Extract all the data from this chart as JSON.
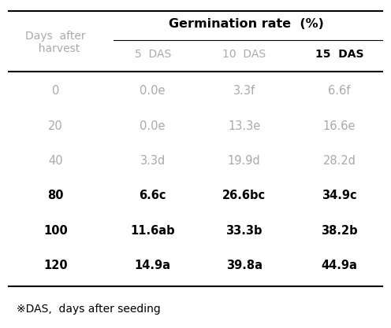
{
  "col_headers": [
    "Days after\nharvest",
    "5 DAS",
    "10 DAS",
    "15 DAS"
  ],
  "group_header": "Germination rate  (%)",
  "rows": [
    [
      "0",
      "0.0e",
      "3.3f",
      "6.6f"
    ],
    [
      "20",
      "0.0e",
      "13.3e",
      "16.6e"
    ],
    [
      "40",
      "3.3d",
      "19.9d",
      "28.2d"
    ],
    [
      "80",
      "6.6c",
      "26.6bc",
      "34.9c"
    ],
    [
      "100",
      "11.6ab",
      "33.3b",
      "38.2b"
    ],
    [
      "120",
      "14.9a",
      "39.8a",
      "44.9a"
    ]
  ],
  "footnote": "※DAS,  days after seeding",
  "light_rows": [
    0,
    1,
    2
  ],
  "bold_rows": [
    3,
    4,
    5
  ],
  "text_color_light": "#aaaaaa",
  "text_color_dark": "#000000",
  "background_color": "#ffffff",
  "header_line_color": "#000000",
  "figsize": [
    4.96,
    4.17
  ],
  "dpi": 100
}
